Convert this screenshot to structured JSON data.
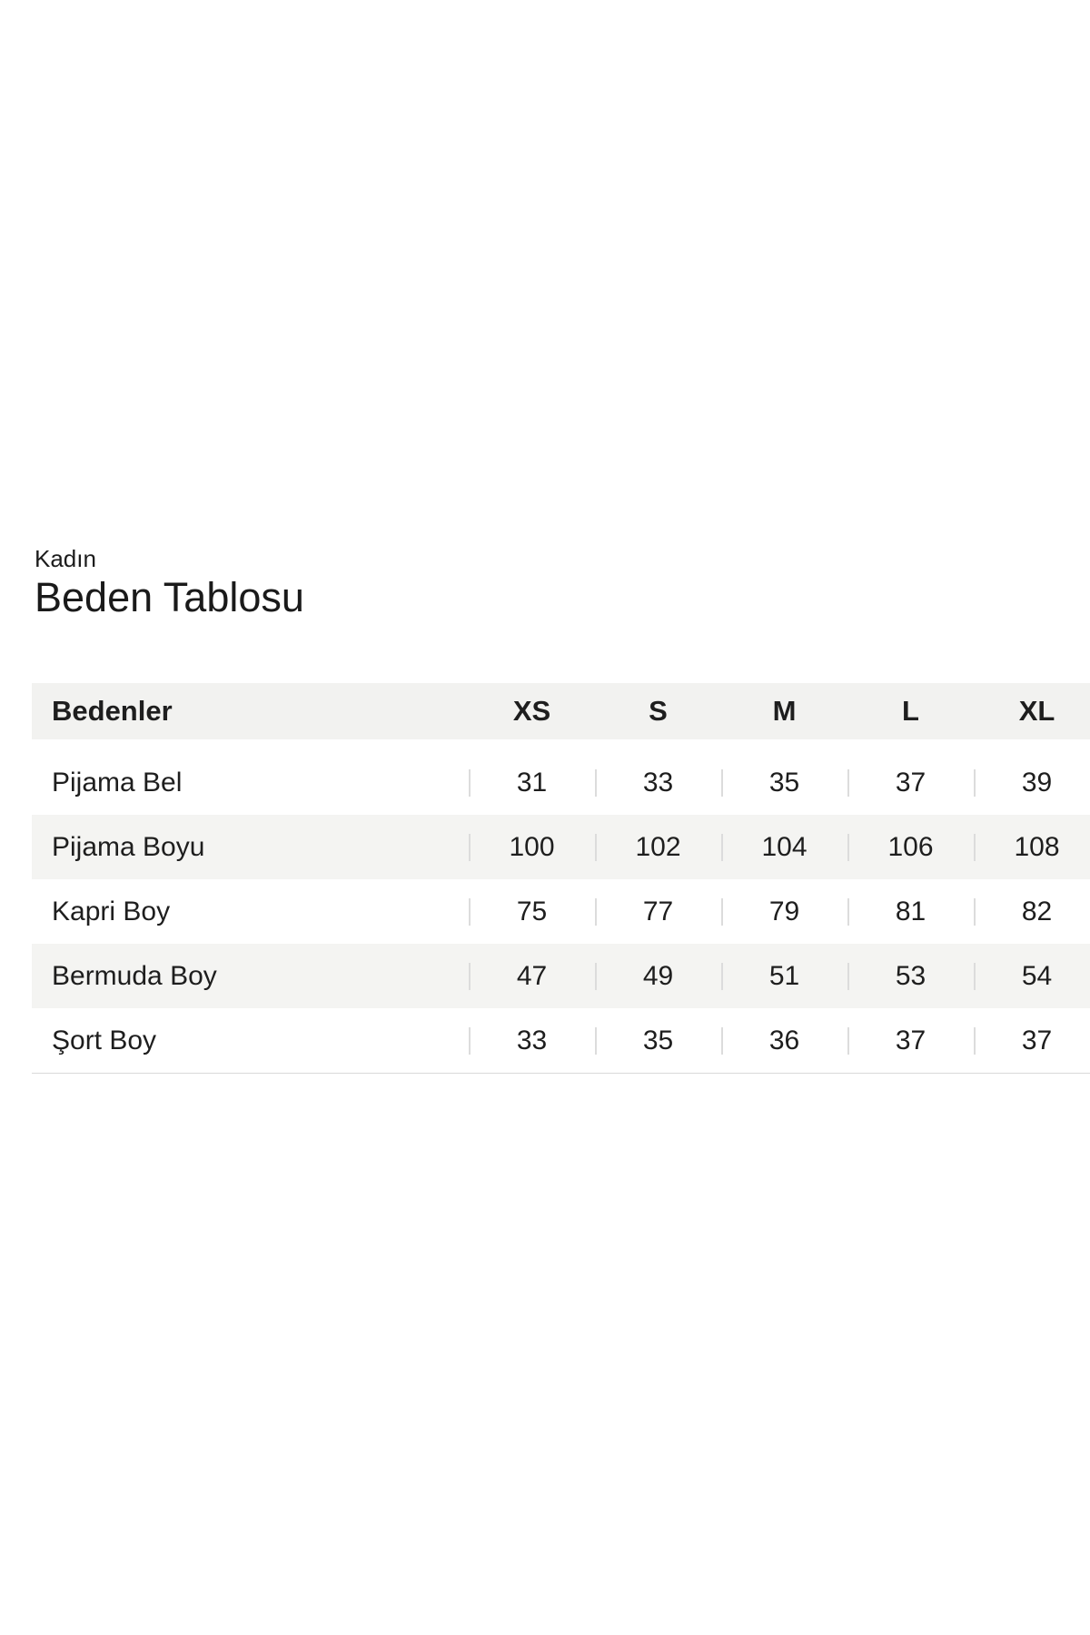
{
  "header": {
    "category": "Kadın",
    "title": "Beden Tablosu"
  },
  "table": {
    "header_label": "Bedenler",
    "columns": [
      "XS",
      "S",
      "M",
      "L",
      "XL"
    ],
    "rows": [
      {
        "label": "Pijama Bel",
        "values": [
          "31",
          "33",
          "35",
          "37",
          "39"
        ]
      },
      {
        "label": "Pijama Boyu",
        "values": [
          "100",
          "102",
          "104",
          "106",
          "108"
        ]
      },
      {
        "label": "Kapri Boy",
        "values": [
          "75",
          "77",
          "79",
          "81",
          "82"
        ]
      },
      {
        "label": "Bermuda Boy",
        "values": [
          "47",
          "49",
          "51",
          "53",
          "54"
        ]
      },
      {
        "label": "Şort Boy",
        "values": [
          "33",
          "35",
          "36",
          "37",
          "37"
        ]
      }
    ]
  },
  "colors": {
    "header_bg": "#f2f2f0",
    "row_stripe_bg": "#f4f4f2",
    "cell_divider": "#dcdcdc",
    "table_bottom_border": "#d9d9d9",
    "text": "#1e1e1e"
  }
}
